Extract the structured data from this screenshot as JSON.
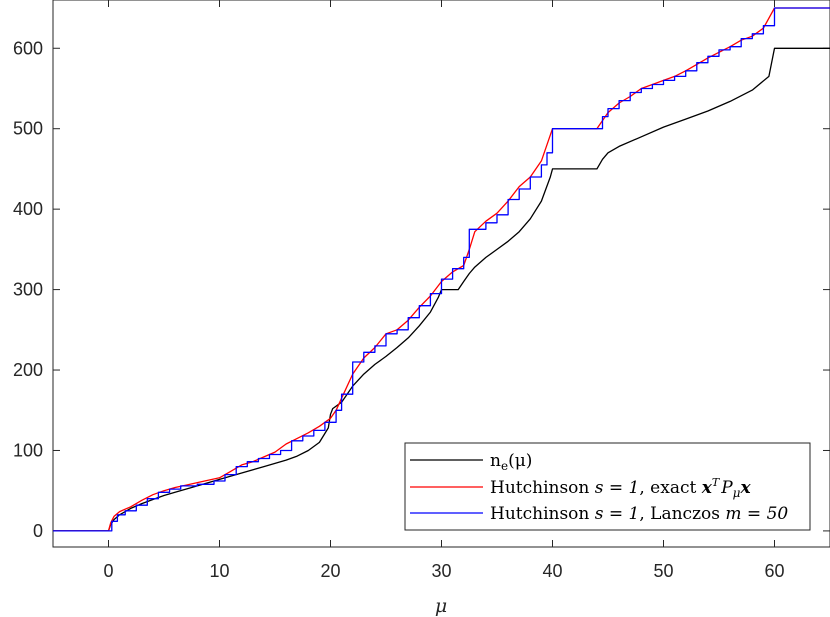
{
  "chart_data": {
    "type": "line",
    "xlabel": "μ",
    "ylabel": "",
    "xlim": [
      -5,
      65
    ],
    "ylim": [
      -20,
      660
    ],
    "xticks": [
      0,
      10,
      20,
      30,
      40,
      50,
      60
    ],
    "yticks": [
      0,
      100,
      200,
      300,
      400,
      500,
      600
    ],
    "grid": false,
    "legend_position": "bottom-right",
    "colors": {
      "ne": "#000000",
      "exact": "#ff0000",
      "lanczos": "#0000ff",
      "axis": "#262626"
    },
    "series": [
      {
        "name": "n_e(μ)",
        "legend_parts": {
          "main": "n",
          "sub": "e",
          "rest": "(μ)"
        },
        "kind": "smooth",
        "points": [
          [
            -5,
            0
          ],
          [
            0,
            0
          ],
          [
            0.2,
            8
          ],
          [
            0.5,
            14
          ],
          [
            1,
            20
          ],
          [
            2,
            28
          ],
          [
            3,
            34
          ],
          [
            4,
            39
          ],
          [
            5,
            44
          ],
          [
            6,
            48
          ],
          [
            8,
            56
          ],
          [
            10,
            64
          ],
          [
            12,
            72
          ],
          [
            14,
            80
          ],
          [
            16,
            88
          ],
          [
            17,
            93
          ],
          [
            18,
            100
          ],
          [
            19,
            110
          ],
          [
            19.8,
            128
          ],
          [
            20,
            145
          ],
          [
            20.2,
            152
          ],
          [
            21,
            160
          ],
          [
            22,
            180
          ],
          [
            23,
            195
          ],
          [
            24,
            207
          ],
          [
            25,
            217
          ],
          [
            26,
            228
          ],
          [
            27,
            240
          ],
          [
            28,
            255
          ],
          [
            29,
            272
          ],
          [
            29.7,
            290
          ],
          [
            30,
            300
          ],
          [
            31.5,
            300
          ],
          [
            32,
            310
          ],
          [
            32.5,
            320
          ],
          [
            33,
            328
          ],
          [
            34,
            340
          ],
          [
            35,
            350
          ],
          [
            36,
            360
          ],
          [
            37,
            372
          ],
          [
            38,
            388
          ],
          [
            39,
            410
          ],
          [
            39.8,
            440
          ],
          [
            40,
            450
          ],
          [
            44,
            450
          ],
          [
            44.5,
            462
          ],
          [
            45,
            470
          ],
          [
            46,
            478
          ],
          [
            48,
            490
          ],
          [
            50,
            502
          ],
          [
            52,
            512
          ],
          [
            54,
            522
          ],
          [
            56,
            534
          ],
          [
            58,
            548
          ],
          [
            59.5,
            565
          ],
          [
            60,
            600
          ],
          [
            65,
            600
          ]
        ]
      },
      {
        "name": "Hutchinson s = 1, exact x^T P_μ x",
        "legend_parts": {
          "pre": "Hutchinson ",
          "s_eq": "s = 1",
          "mid": ", exact ",
          "x1": "x",
          "sup": "T",
          "P": "P",
          "sub": "μ",
          "x2": "x"
        },
        "kind": "smooth",
        "points": [
          [
            -5,
            0
          ],
          [
            0,
            0
          ],
          [
            0.2,
            10
          ],
          [
            0.5,
            18
          ],
          [
            1,
            24
          ],
          [
            2,
            30
          ],
          [
            3,
            38
          ],
          [
            4,
            45
          ],
          [
            5,
            50
          ],
          [
            6,
            54
          ],
          [
            7,
            57
          ],
          [
            8,
            60
          ],
          [
            10,
            66
          ],
          [
            11,
            74
          ],
          [
            12,
            82
          ],
          [
            13,
            86
          ],
          [
            14,
            92
          ],
          [
            15,
            98
          ],
          [
            16,
            108
          ],
          [
            17,
            115
          ],
          [
            18,
            122
          ],
          [
            19,
            130
          ],
          [
            20,
            140
          ],
          [
            20.5,
            150
          ],
          [
            21,
            165
          ],
          [
            22,
            195
          ],
          [
            23,
            215
          ],
          [
            24,
            228
          ],
          [
            25,
            245
          ],
          [
            26,
            250
          ],
          [
            27,
            262
          ],
          [
            28,
            278
          ],
          [
            29,
            292
          ],
          [
            30,
            310
          ],
          [
            31,
            322
          ],
          [
            32,
            330
          ],
          [
            32.5,
            350
          ],
          [
            33,
            372
          ],
          [
            34,
            385
          ],
          [
            35,
            395
          ],
          [
            36,
            410
          ],
          [
            37,
            428
          ],
          [
            38,
            440
          ],
          [
            39,
            460
          ],
          [
            40,
            500
          ],
          [
            44,
            500
          ],
          [
            45,
            520
          ],
          [
            46,
            532
          ],
          [
            47,
            540
          ],
          [
            48,
            550
          ],
          [
            49,
            555
          ],
          [
            50,
            560
          ],
          [
            51,
            565
          ],
          [
            52,
            572
          ],
          [
            53,
            580
          ],
          [
            54,
            588
          ],
          [
            55,
            595
          ],
          [
            56,
            602
          ],
          [
            57,
            610
          ],
          [
            58,
            615
          ],
          [
            59,
            625
          ],
          [
            60,
            650
          ],
          [
            65,
            650
          ]
        ]
      },
      {
        "name": "Hutchinson s = 1, Lanczos m = 50",
        "legend_parts": {
          "pre": "Hutchinson ",
          "s_eq": "s = 1",
          "mid": ", Lanczos ",
          "m_eq": "m = 50"
        },
        "kind": "step",
        "points": [
          [
            -5,
            0
          ],
          [
            0,
            0
          ],
          [
            0.3,
            12
          ],
          [
            0.8,
            20
          ],
          [
            1.5,
            25
          ],
          [
            2.5,
            32
          ],
          [
            3.5,
            40
          ],
          [
            4.5,
            48
          ],
          [
            5.5,
            52
          ],
          [
            6.5,
            56
          ],
          [
            8,
            58
          ],
          [
            9.5,
            62
          ],
          [
            10.5,
            70
          ],
          [
            11.5,
            80
          ],
          [
            12.5,
            86
          ],
          [
            13.5,
            90
          ],
          [
            14.5,
            95
          ],
          [
            15.5,
            100
          ],
          [
            16.5,
            112
          ],
          [
            17.5,
            118
          ],
          [
            18.5,
            125
          ],
          [
            19.5,
            135
          ],
          [
            20.5,
            150
          ],
          [
            21,
            170
          ],
          [
            22,
            210
          ],
          [
            23,
            222
          ],
          [
            24,
            230
          ],
          [
            25,
            245
          ],
          [
            26,
            250
          ],
          [
            27,
            265
          ],
          [
            28,
            280
          ],
          [
            29,
            295
          ],
          [
            30,
            313
          ],
          [
            31,
            326
          ],
          [
            32,
            340
          ],
          [
            32.5,
            375
          ],
          [
            34,
            383
          ],
          [
            35,
            393
          ],
          [
            36,
            412
          ],
          [
            37,
            425
          ],
          [
            38,
            440
          ],
          [
            39,
            455
          ],
          [
            39.5,
            470
          ],
          [
            40,
            500
          ],
          [
            44,
            500
          ],
          [
            44.5,
            515
          ],
          [
            45,
            525
          ],
          [
            46,
            535
          ],
          [
            47,
            545
          ],
          [
            48,
            550
          ],
          [
            49,
            555
          ],
          [
            50,
            560
          ],
          [
            51,
            565
          ],
          [
            52,
            572
          ],
          [
            53,
            582
          ],
          [
            54,
            590
          ],
          [
            55,
            598
          ],
          [
            56,
            602
          ],
          [
            57,
            612
          ],
          [
            58,
            618
          ],
          [
            59,
            628
          ],
          [
            60,
            650
          ],
          [
            65,
            650
          ]
        ]
      }
    ]
  }
}
